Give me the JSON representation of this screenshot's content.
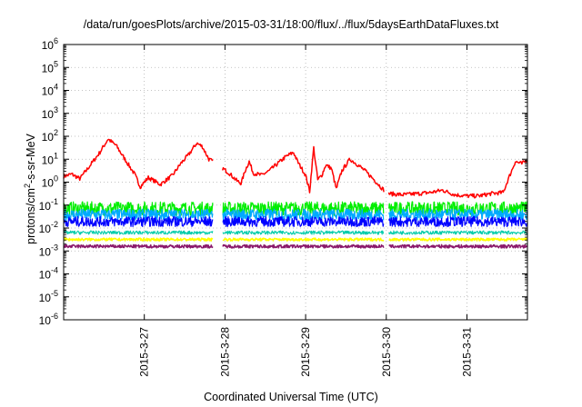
{
  "chart_data": {
    "type": "line",
    "title": "/data/run/goesPlots/archive/2015-03-31/18:00/flux/../flux/5daysEarthDataFluxes.txt",
    "xlabel": "Coordinated Universal Time (UTC)",
    "ylabel_parts": [
      "protons/cm",
      "2",
      "-s-sr-MeV"
    ],
    "yscale": "log",
    "ylim_exp": [
      -6,
      6
    ],
    "xlim_days": [
      26.0,
      31.75
    ],
    "grid": true,
    "legend": "none",
    "x_ticks": [
      {
        "day": 27,
        "label": "2015-3-27"
      },
      {
        "day": 28,
        "label": "2015-3-28"
      },
      {
        "day": 29,
        "label": "2015-3-29"
      },
      {
        "day": 30,
        "label": "2015-3-30"
      },
      {
        "day": 31,
        "label": "2015-3-31"
      }
    ],
    "y_ticks": [
      {
        "exp": 6,
        "base": "10",
        "sup": "6"
      },
      {
        "exp": 5,
        "base": "10",
        "sup": "5"
      },
      {
        "exp": 4,
        "base": "10",
        "sup": "4"
      },
      {
        "exp": 3,
        "base": "10",
        "sup": "3"
      },
      {
        "exp": 2,
        "base": "10",
        "sup": "2"
      },
      {
        "exp": 1,
        "base": "10",
        "sup": "1"
      },
      {
        "exp": 0,
        "base": "10",
        "sup": "0"
      },
      {
        "exp": -1,
        "base": "10",
        "sup": "-1"
      },
      {
        "exp": -2,
        "base": "10",
        "sup": "-2"
      },
      {
        "exp": -3,
        "base": "10",
        "sup": "-3"
      },
      {
        "exp": -4,
        "base": "10",
        "sup": "-4"
      },
      {
        "exp": -5,
        "base": "10",
        "sup": "-5"
      },
      {
        "exp": -6,
        "base": "10",
        "sup": "-6"
      }
    ],
    "data_gaps": [
      [
        27.85,
        27.97
      ],
      [
        29.97,
        30.03
      ]
    ],
    "series": [
      {
        "color": "#ff0000",
        "width": 1.5,
        "noise": 0.09,
        "points": [
          [
            26.0,
            0.25
          ],
          [
            26.1,
            0.35
          ],
          [
            26.2,
            0.15
          ],
          [
            26.3,
            0.6
          ],
          [
            26.45,
            1.3
          ],
          [
            26.55,
            1.88
          ],
          [
            26.65,
            1.6
          ],
          [
            26.75,
            1.05
          ],
          [
            26.88,
            0.35
          ],
          [
            26.95,
            -0.2
          ],
          [
            27.05,
            0.2
          ],
          [
            27.2,
            -0.1
          ],
          [
            27.35,
            0.3
          ],
          [
            27.45,
            0.8
          ],
          [
            27.55,
            1.2
          ],
          [
            27.65,
            1.7
          ],
          [
            27.72,
            1.55
          ],
          [
            27.8,
            1.0
          ],
          [
            27.85,
            0.9
          ],
          [
            27.97,
            0.6
          ],
          [
            28.05,
            0.4
          ],
          [
            28.15,
            0.05
          ],
          [
            28.2,
            -0.05
          ],
          [
            28.25,
            0.5
          ],
          [
            28.3,
            0.9
          ],
          [
            28.35,
            0.4
          ],
          [
            28.45,
            0.3
          ],
          [
            28.55,
            0.5
          ],
          [
            28.65,
            0.8
          ],
          [
            28.75,
            1.1
          ],
          [
            28.85,
            1.3
          ],
          [
            28.9,
            0.9
          ],
          [
            29.0,
            0.3
          ],
          [
            29.05,
            -0.4
          ],
          [
            29.1,
            1.5
          ],
          [
            29.15,
            0.1
          ],
          [
            29.2,
            0.3
          ],
          [
            29.25,
            0.75
          ],
          [
            29.32,
            0.6
          ],
          [
            29.38,
            -0.3
          ],
          [
            29.45,
            0.5
          ],
          [
            29.55,
            1.0
          ],
          [
            29.65,
            0.75
          ],
          [
            29.75,
            0.45
          ],
          [
            29.85,
            0.1
          ],
          [
            29.97,
            -0.35
          ],
          [
            30.03,
            -0.5
          ],
          [
            30.2,
            -0.55
          ],
          [
            30.4,
            -0.5
          ],
          [
            30.55,
            -0.45
          ],
          [
            30.7,
            -0.35
          ],
          [
            30.85,
            -0.55
          ],
          [
            31.0,
            -0.6
          ],
          [
            31.15,
            -0.6
          ],
          [
            31.3,
            -0.5
          ],
          [
            31.45,
            -0.45
          ],
          [
            31.52,
            0.2
          ],
          [
            31.6,
            0.9
          ],
          [
            31.68,
            0.8
          ],
          [
            31.75,
            1.0
          ]
        ]
      },
      {
        "color": "#00ee00",
        "width": 1.2,
        "noise": 0.3,
        "base_exp": -1.15,
        "points": []
      },
      {
        "color": "#00aaff",
        "width": 1.2,
        "noise": 0.25,
        "base_exp": -1.42,
        "points": []
      },
      {
        "color": "#0000ff",
        "width": 1.2,
        "noise": 0.22,
        "base_exp": -1.72,
        "points": []
      },
      {
        "color": "#00ccaa",
        "width": 1.0,
        "noise": 0.08,
        "base_exp": -2.2,
        "points": []
      },
      {
        "color": "#ffff00",
        "width": 1.5,
        "noise": 0.06,
        "base_exp": -2.5,
        "points": []
      },
      {
        "color": "#8b1a6b",
        "width": 1.5,
        "noise": 0.07,
        "base_exp": -2.8,
        "points": []
      }
    ]
  }
}
